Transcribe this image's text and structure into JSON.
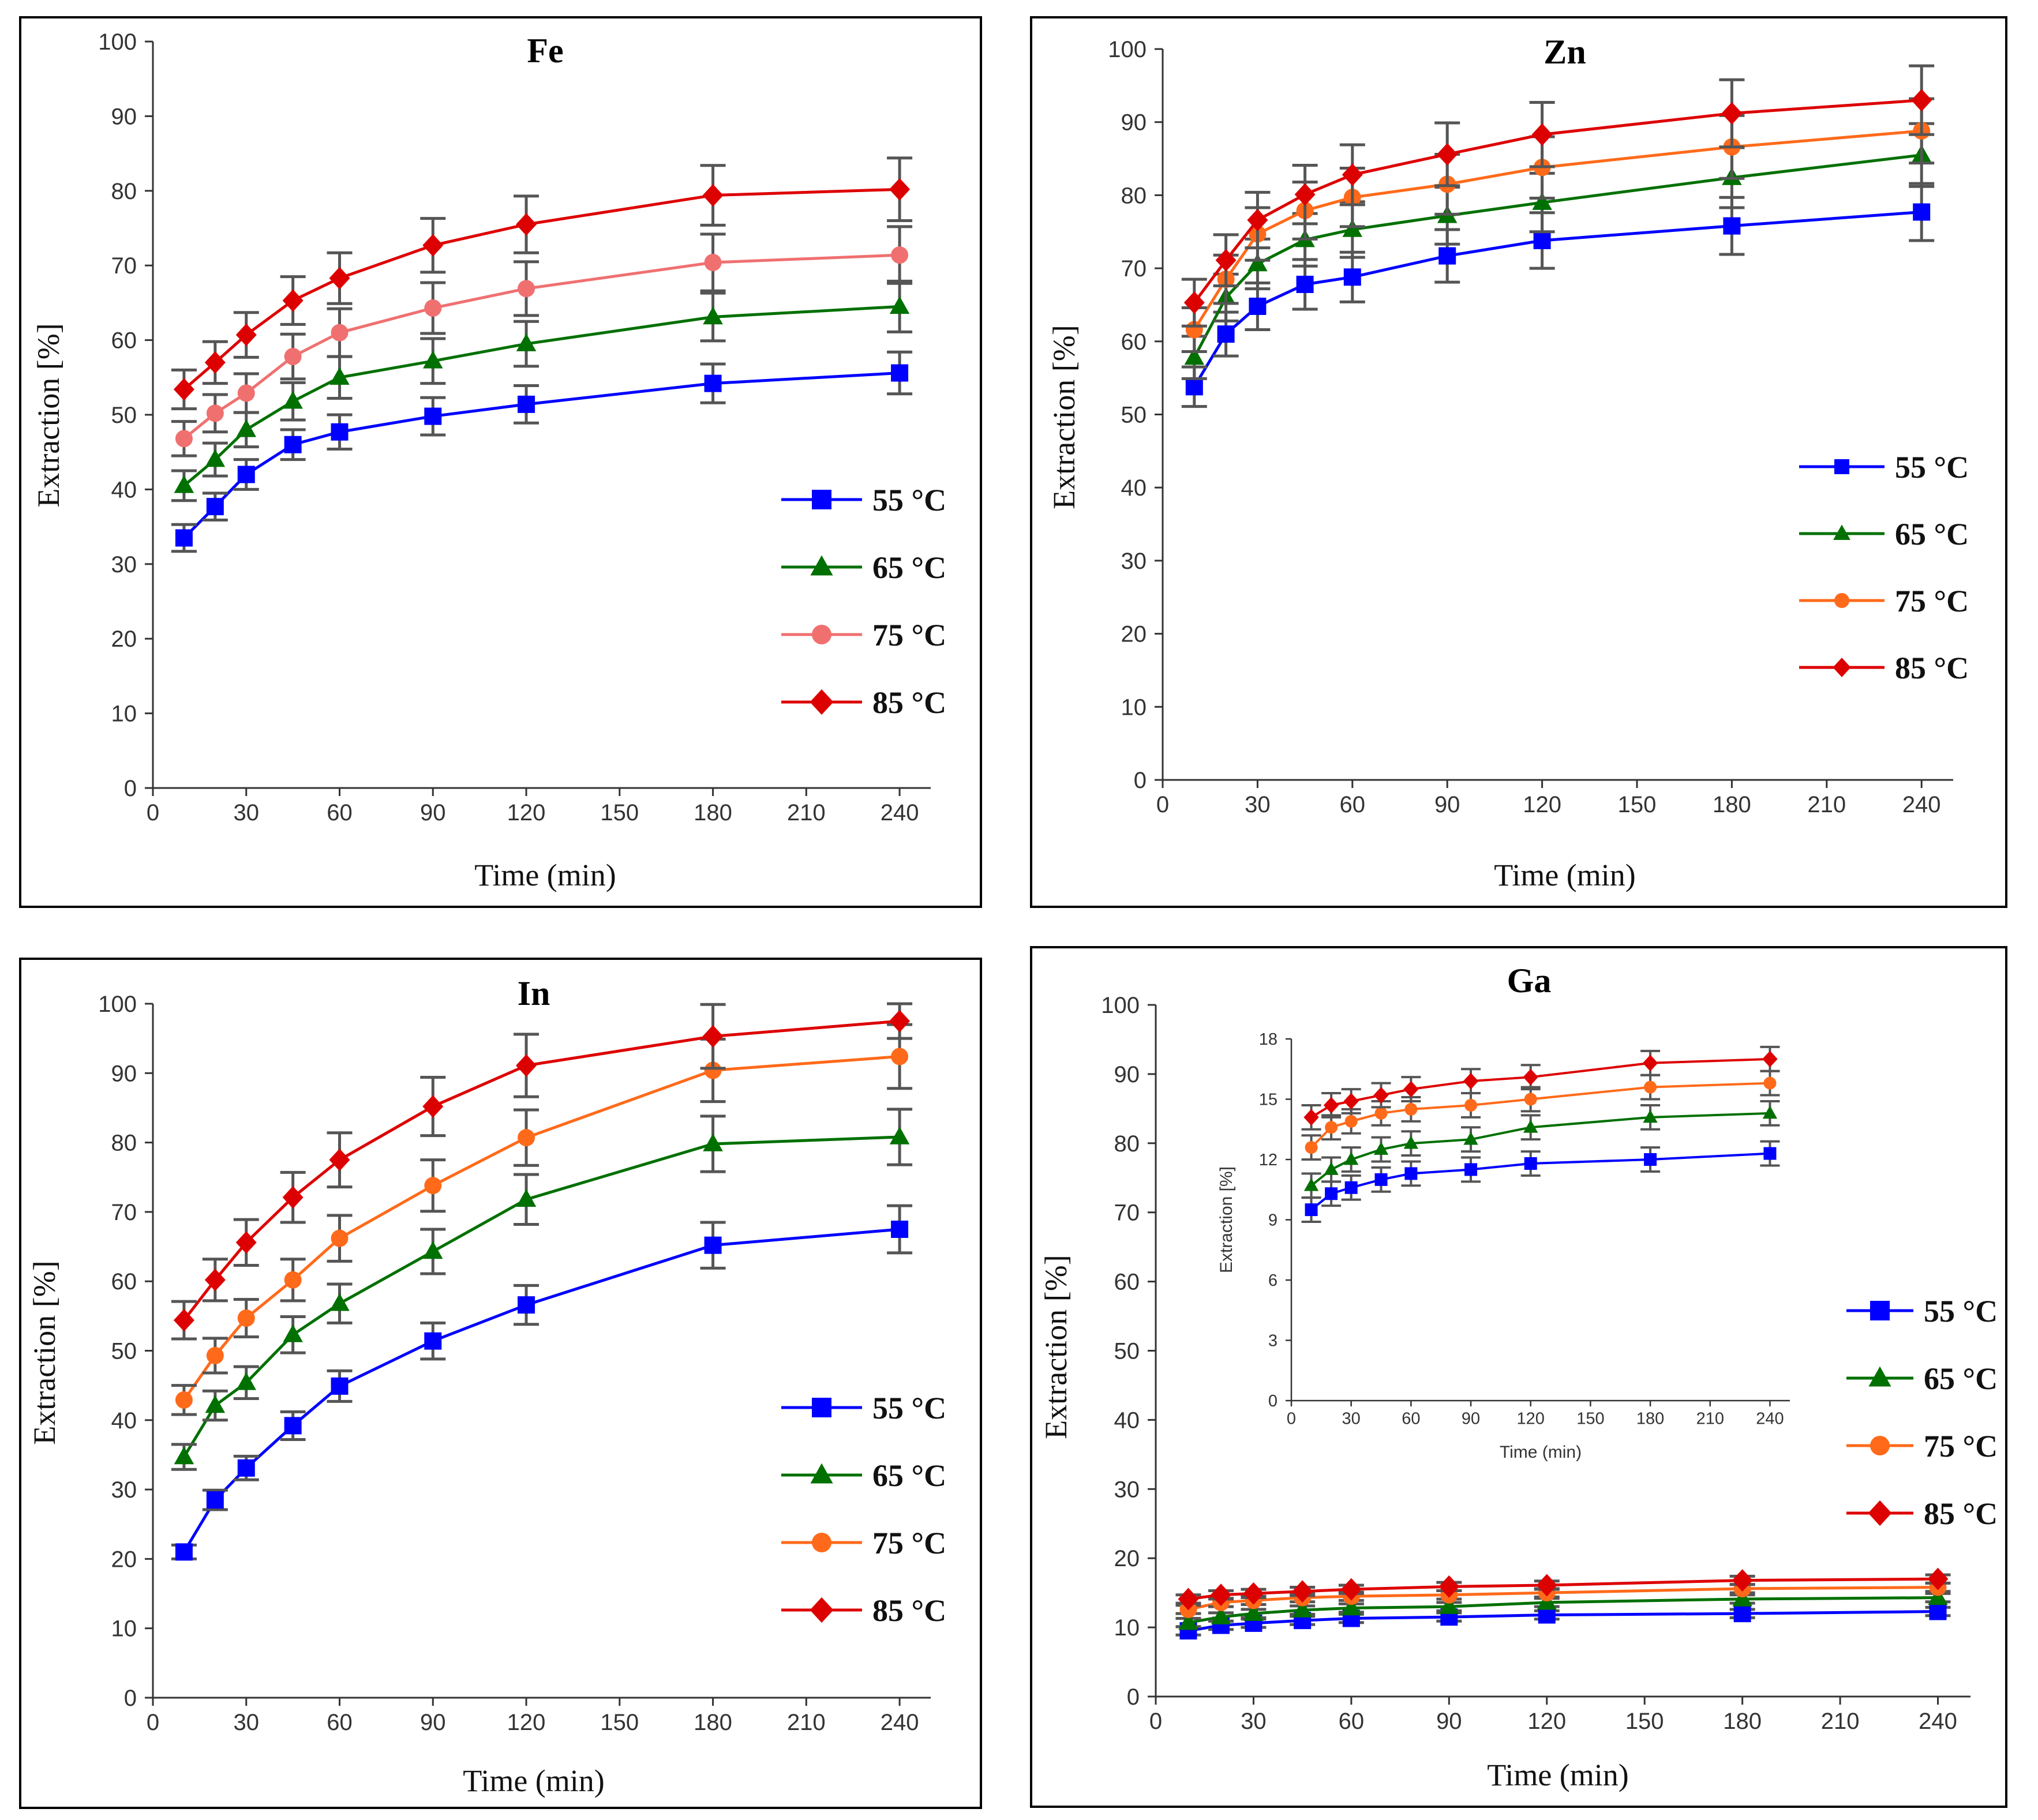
{
  "chart_data": [
    {
      "type": "line",
      "title": "Fe",
      "xlabel": "Time (min)",
      "ylabel": "Extraction [%]",
      "x": [
        10,
        20,
        30,
        45,
        60,
        90,
        120,
        180,
        240
      ],
      "xticks": [
        0,
        30,
        60,
        90,
        120,
        150,
        180,
        210,
        240
      ],
      "yticks": [
        0,
        10,
        20,
        30,
        40,
        50,
        60,
        70,
        80,
        90,
        100
      ],
      "xlim": [
        0,
        250
      ],
      "ylim": [
        0,
        100
      ],
      "series": [
        {
          "name": "55 °C",
          "color": "#0000ff",
          "marker": "square",
          "values": [
            33.5,
            37.7,
            42.0,
            46.0,
            47.7,
            49.8,
            51.4,
            54.2,
            55.6
          ],
          "errors": [
            1.8,
            1.8,
            2.0,
            2.0,
            2.3,
            2.5,
            2.5,
            2.6,
            2.8
          ]
        },
        {
          "name": "65 °C",
          "color": "#007000",
          "marker": "triangle",
          "values": [
            40.5,
            44.0,
            48.0,
            51.8,
            55.0,
            57.2,
            59.5,
            63.1,
            64.5
          ],
          "errors": [
            2.0,
            2.2,
            2.3,
            2.5,
            2.8,
            3.0,
            3.0,
            3.2,
            3.4
          ]
        },
        {
          "name": "75 °C",
          "color": "#f07070",
          "marker": "circle",
          "values": [
            46.8,
            50.2,
            52.9,
            57.8,
            61.0,
            64.3,
            66.9,
            70.4,
            71.4
          ],
          "errors": [
            2.3,
            2.5,
            2.6,
            3.0,
            3.2,
            3.4,
            3.6,
            3.8,
            3.8
          ]
        },
        {
          "name": "85 °C",
          "color": "#dd0000",
          "marker": "diamond",
          "values": [
            53.4,
            57.0,
            60.7,
            65.3,
            68.3,
            72.7,
            75.5,
            79.4,
            80.2
          ],
          "errors": [
            2.6,
            2.8,
            3.0,
            3.2,
            3.4,
            3.6,
            3.8,
            4.0,
            4.2
          ]
        }
      ]
    },
    {
      "type": "line",
      "title": "Zn",
      "xlabel": "Time (min)",
      "ylabel": "Extraction [%]",
      "x": [
        10,
        20,
        30,
        45,
        60,
        90,
        120,
        180,
        240
      ],
      "xticks": [
        0,
        30,
        60,
        90,
        120,
        150,
        180,
        210,
        240
      ],
      "yticks": [
        0,
        10,
        20,
        30,
        40,
        50,
        60,
        70,
        80,
        90,
        100
      ],
      "xlim": [
        0,
        250
      ],
      "ylim": [
        0,
        100
      ],
      "series": [
        {
          "name": "55 °C",
          "color": "#0000ff",
          "marker": "square",
          "values": [
            53.8,
            61.0,
            64.8,
            67.8,
            68.8,
            71.7,
            73.8,
            75.8,
            77.7
          ],
          "errors": [
            2.7,
            3.0,
            3.2,
            3.4,
            3.4,
            3.6,
            3.8,
            3.9,
            3.9
          ]
        },
        {
          "name": "65 °C",
          "color": "#007000",
          "marker": "triangle",
          "values": [
            57.8,
            66.0,
            70.6,
            73.9,
            75.3,
            77.2,
            79.0,
            82.4,
            85.5
          ],
          "errors": [
            2.9,
            3.2,
            3.4,
            3.6,
            3.8,
            3.9,
            4.0,
            4.1,
            4.3
          ]
        },
        {
          "name": "75 °C",
          "color": "#ff6a1a",
          "marker": "circle",
          "values": [
            61.6,
            68.5,
            74.7,
            77.9,
            79.7,
            81.5,
            83.8,
            86.6,
            88.8
          ],
          "errors": [
            3.0,
            3.3,
            3.6,
            3.9,
            4.0,
            4.1,
            4.2,
            4.3,
            4.4
          ]
        },
        {
          "name": "85 °C",
          "color": "#dd0000",
          "marker": "diamond",
          "values": [
            65.3,
            71.1,
            76.6,
            80.1,
            82.8,
            85.6,
            88.3,
            91.2,
            93.0
          ],
          "errors": [
            3.2,
            3.5,
            3.8,
            4.0,
            4.1,
            4.3,
            4.4,
            4.6,
            4.7
          ]
        }
      ]
    },
    {
      "type": "line",
      "title": "In",
      "xlabel": "Time (min)",
      "ylabel": "Extraction [%]",
      "x": [
        10,
        20,
        30,
        45,
        60,
        90,
        120,
        180,
        240
      ],
      "xticks": [
        0,
        30,
        60,
        90,
        120,
        150,
        180,
        210,
        240
      ],
      "yticks": [
        0,
        10,
        20,
        30,
        40,
        50,
        60,
        70,
        80,
        90,
        100
      ],
      "xlim": [
        0,
        250
      ],
      "ylim": [
        0,
        100
      ],
      "series": [
        {
          "name": "55 °C",
          "color": "#0000ff",
          "marker": "square",
          "values": [
            21.0,
            28.5,
            33.1,
            39.2,
            44.9,
            51.4,
            56.6,
            65.2,
            67.5
          ],
          "errors": [
            1.0,
            1.4,
            1.7,
            2.0,
            2.2,
            2.6,
            2.8,
            3.3,
            3.4
          ]
        },
        {
          "name": "65 °C",
          "color": "#007000",
          "marker": "triangle",
          "values": [
            34.7,
            42.1,
            45.4,
            52.3,
            56.8,
            64.3,
            71.8,
            79.8,
            80.8
          ],
          "errors": [
            1.8,
            2.1,
            2.3,
            2.6,
            2.8,
            3.2,
            3.6,
            4.0,
            4.0
          ]
        },
        {
          "name": "75 °C",
          "color": "#ff6a1a",
          "marker": "circle",
          "values": [
            42.9,
            49.3,
            54.7,
            60.2,
            66.2,
            73.8,
            80.7,
            90.4,
            92.4
          ],
          "errors": [
            2.1,
            2.5,
            2.7,
            3.0,
            3.3,
            3.7,
            4.0,
            4.5,
            4.6
          ]
        },
        {
          "name": "85 °C",
          "color": "#dd0000",
          "marker": "diamond",
          "values": [
            54.4,
            60.2,
            65.6,
            72.1,
            77.5,
            85.2,
            91.1,
            95.3,
            97.5
          ],
          "errors": [
            2.7,
            3.0,
            3.3,
            3.6,
            3.9,
            4.2,
            4.5,
            4.6,
            2.5
          ]
        }
      ]
    },
    {
      "type": "line",
      "title": "Ga",
      "xlabel": "Time (min)",
      "ylabel": "Extraction [%]",
      "x": [
        10,
        20,
        30,
        45,
        60,
        90,
        120,
        180,
        240
      ],
      "xticks": [
        0,
        30,
        60,
        90,
        120,
        150,
        180,
        210,
        240
      ],
      "yticks": [
        0,
        10,
        20,
        30,
        40,
        50,
        60,
        70,
        80,
        90,
        100
      ],
      "xlim": [
        0,
        250
      ],
      "ylim": [
        0,
        100
      ],
      "series": [
        {
          "name": "55 °C",
          "color": "#0000ff",
          "marker": "square",
          "values": [
            9.5,
            10.3,
            10.6,
            11.0,
            11.3,
            11.5,
            11.8,
            12.0,
            12.3
          ],
          "errors": [
            0.6,
            0.6,
            0.6,
            0.6,
            0.6,
            0.6,
            0.6,
            0.6,
            0.6
          ]
        },
        {
          "name": "65 °C",
          "color": "#007000",
          "marker": "triangle",
          "values": [
            10.7,
            11.5,
            12.0,
            12.5,
            12.8,
            13.0,
            13.6,
            14.1,
            14.3
          ],
          "errors": [
            0.6,
            0.6,
            0.6,
            0.6,
            0.6,
            0.6,
            0.6,
            0.6,
            0.6
          ]
        },
        {
          "name": "75 °C",
          "color": "#ff6a1a",
          "marker": "circle",
          "values": [
            12.6,
            13.6,
            13.9,
            14.3,
            14.5,
            14.7,
            15.0,
            15.6,
            15.8
          ],
          "errors": [
            0.6,
            0.6,
            0.6,
            0.6,
            0.6,
            0.6,
            0.6,
            0.6,
            0.6
          ]
        },
        {
          "name": "85 °C",
          "color": "#dd0000",
          "marker": "diamond",
          "values": [
            14.1,
            14.7,
            14.9,
            15.2,
            15.5,
            15.9,
            16.1,
            16.8,
            17.0
          ],
          "errors": [
            0.6,
            0.6,
            0.6,
            0.6,
            0.6,
            0.6,
            0.6,
            0.6,
            0.6
          ]
        }
      ],
      "inset": {
        "xlabel": "Time (min)",
        "ylabel": "Extraction [%]",
        "xticks": [
          0,
          30,
          60,
          90,
          120,
          150,
          180,
          210,
          240
        ],
        "yticks": [
          0,
          3,
          6,
          9,
          12,
          15,
          18
        ],
        "xlim": [
          0,
          250
        ],
        "ylim": [
          0,
          18
        ]
      }
    }
  ]
}
